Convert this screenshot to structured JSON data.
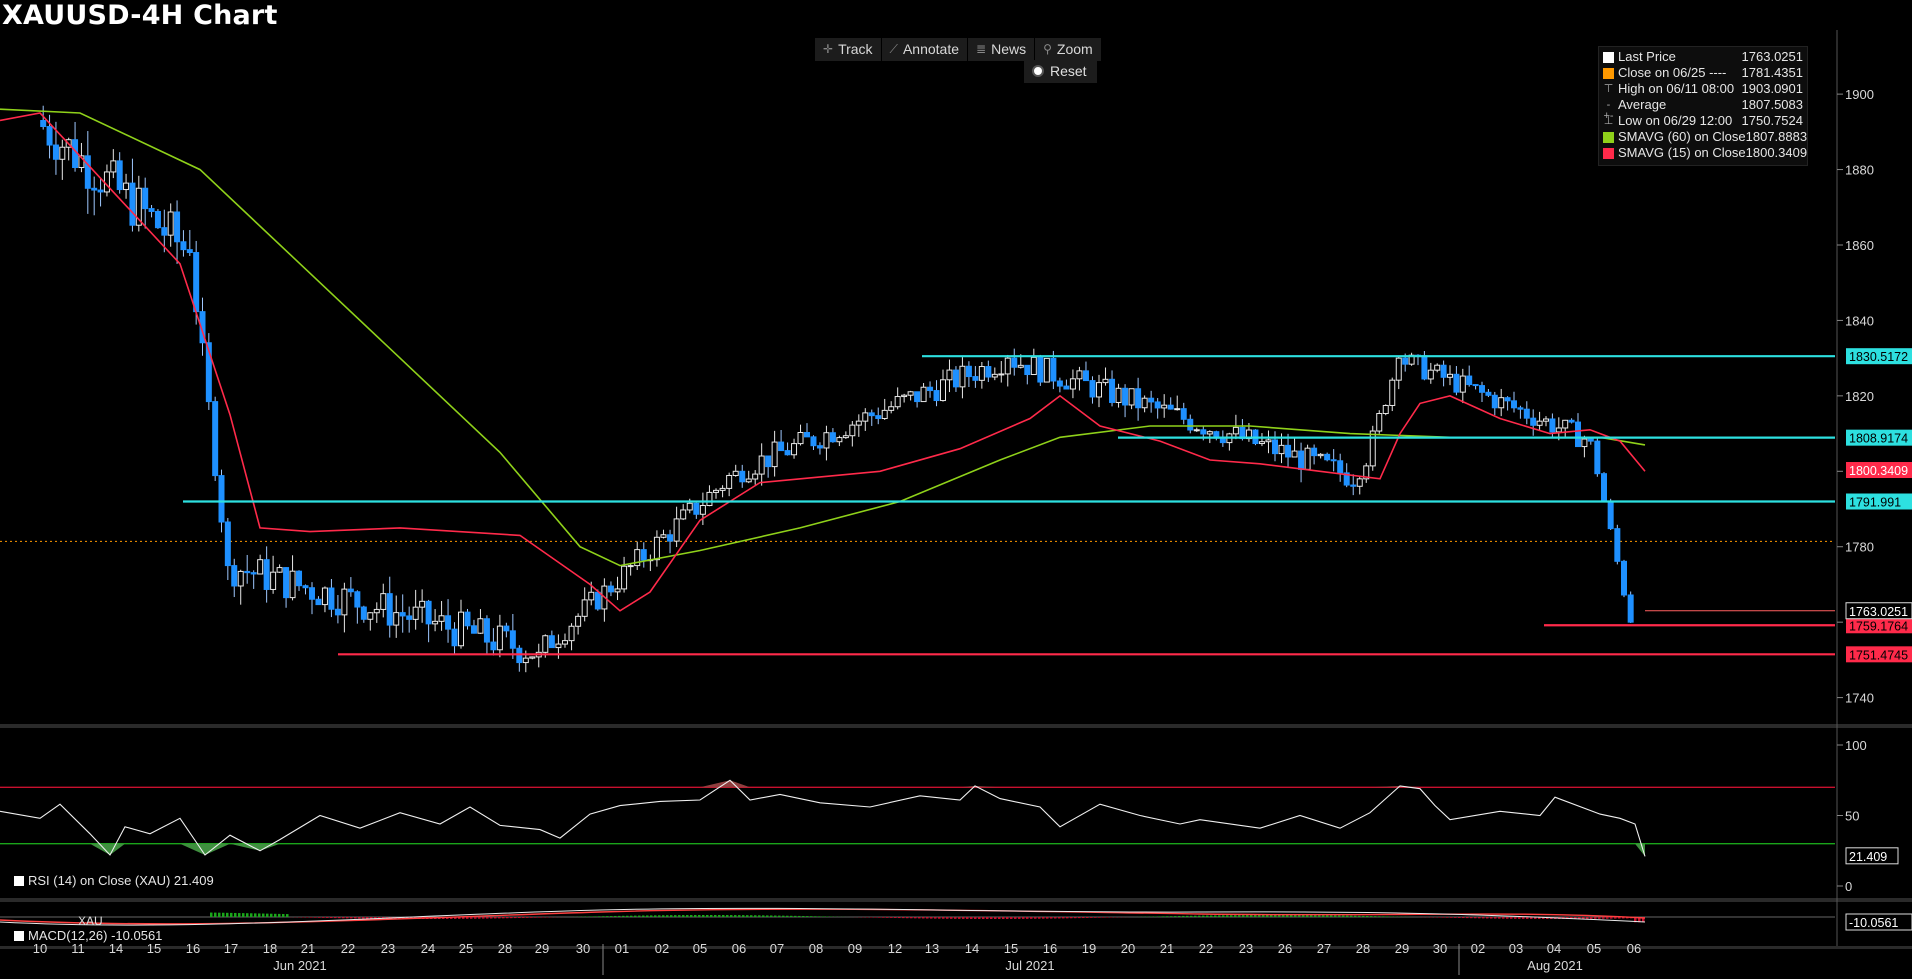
{
  "header": {
    "title": "XAUUSD-4H Chart"
  },
  "toolbar": {
    "items": [
      {
        "label": "Track",
        "icon": "crosshair-icon"
      },
      {
        "label": "Annotate",
        "icon": "pencil-icon"
      },
      {
        "label": "News",
        "icon": "news-icon"
      },
      {
        "label": "Zoom",
        "icon": "magnifier-icon"
      }
    ],
    "reset_label": "Reset"
  },
  "legend": {
    "rows": [
      {
        "label": "Last Price",
        "value": "1763.0251",
        "color": "#ffffff"
      },
      {
        "label": "Close on 06/25 ----",
        "value": "1781.4351",
        "color": "#ff9900"
      },
      {
        "label": "High on 06/11 08:00",
        "value": "1903.0901",
        "color": "#888888"
      },
      {
        "label": "Average",
        "value": "1807.5083",
        "color": "#888888"
      },
      {
        "label": "Low on 06/29 12:00",
        "value": "1750.7524",
        "color": "#888888"
      },
      {
        "label": "SMAVG (60)  on Close",
        "value": "1807.8883",
        "color": "#8fd11a"
      },
      {
        "label": "SMAVG (15)  on Close",
        "value": "1800.3409",
        "color": "#ff2a4a"
      }
    ]
  },
  "rsi_panel": {
    "label": "RSI (14)  on Close (XAU) 21.409"
  },
  "macd_panel": {
    "label": "MACD(12,26)  -10.0561",
    "top_label": "XAU"
  },
  "chart_data": {
    "type": "candlestick",
    "title": "XAUUSD-4H Chart",
    "price_axis": {
      "ticks": [
        1740,
        1760,
        1780,
        1800,
        1820,
        1840,
        1860,
        1880,
        1900
      ],
      "range": [
        1733,
        1917
      ]
    },
    "rsi_axis": {
      "ticks": [
        0,
        50,
        100
      ],
      "overbought": 70,
      "oversold": 30
    },
    "x_tick_labels": [
      "10",
      "11",
      "14",
      "15",
      "16",
      "17",
      "18",
      "21",
      "22",
      "23",
      "24",
      "25",
      "28",
      "29",
      "30",
      "01",
      "02",
      "05",
      "06",
      "07",
      "08",
      "09",
      "12",
      "13",
      "14",
      "15",
      "16",
      "19",
      "20",
      "21",
      "22",
      "23",
      "26",
      "27",
      "28",
      "29",
      "30",
      "02",
      "03",
      "04",
      "05",
      "06"
    ],
    "month_labels": [
      "Jun 2021",
      "Jul 2021",
      "Aug 2021"
    ],
    "candle_segments": [
      {
        "from": "06/10",
        "to": "06/16",
        "start": 1893,
        "end": 1858,
        "amp": 14
      },
      {
        "from": "06/16",
        "to": "06/17",
        "start": 1858,
        "end": 1775,
        "amp": 8
      },
      {
        "from": "06/17",
        "to": "06/29",
        "start": 1775,
        "end": 1752,
        "amp": 10
      },
      {
        "from": "06/29",
        "to": "07/06",
        "start": 1752,
        "end": 1800,
        "amp": 7
      },
      {
        "from": "07/06",
        "to": "07/15",
        "start": 1800,
        "end": 1830,
        "amp": 7
      },
      {
        "from": "07/15",
        "to": "07/28",
        "start": 1830,
        "end": 1798,
        "amp": 7
      },
      {
        "from": "07/28",
        "to": "07/29",
        "start": 1798,
        "end": 1830,
        "amp": 5
      },
      {
        "from": "07/29",
        "to": "08/05",
        "start": 1830,
        "end": 1808,
        "amp": 6
      },
      {
        "from": "08/05",
        "to": "08/06",
        "start": 1808,
        "end": 1760,
        "amp": 3
      }
    ],
    "sma15_points": [
      [
        0,
        1893
      ],
      [
        40,
        1895
      ],
      [
        110,
        1875
      ],
      [
        180,
        1855
      ],
      [
        230,
        1815
      ],
      [
        260,
        1785
      ],
      [
        310,
        1784
      ],
      [
        400,
        1785
      ],
      [
        520,
        1783
      ],
      [
        590,
        1770
      ],
      [
        620,
        1763
      ],
      [
        650,
        1768
      ],
      [
        700,
        1787
      ],
      [
        760,
        1797
      ],
      [
        880,
        1800
      ],
      [
        960,
        1806
      ],
      [
        1030,
        1814
      ],
      [
        1060,
        1820
      ],
      [
        1100,
        1812
      ],
      [
        1160,
        1808
      ],
      [
        1210,
        1803
      ],
      [
        1260,
        1802
      ],
      [
        1320,
        1800
      ],
      [
        1380,
        1798
      ],
      [
        1400,
        1810
      ],
      [
        1420,
        1818
      ],
      [
        1450,
        1820
      ],
      [
        1500,
        1814
      ],
      [
        1550,
        1810
      ],
      [
        1590,
        1811
      ],
      [
        1620,
        1808
      ],
      [
        1645,
        1800
      ]
    ],
    "sma60_points": [
      [
        0,
        1896
      ],
      [
        80,
        1895
      ],
      [
        200,
        1880
      ],
      [
        300,
        1855
      ],
      [
        400,
        1830
      ],
      [
        500,
        1805
      ],
      [
        580,
        1780
      ],
      [
        620,
        1775
      ],
      [
        700,
        1779
      ],
      [
        800,
        1785
      ],
      [
        900,
        1792
      ],
      [
        1000,
        1803
      ],
      [
        1060,
        1809
      ],
      [
        1150,
        1812
      ],
      [
        1250,
        1812
      ],
      [
        1350,
        1810
      ],
      [
        1450,
        1809
      ],
      [
        1550,
        1809
      ],
      [
        1600,
        1809
      ],
      [
        1645,
        1807
      ]
    ],
    "horizontal_lines": [
      {
        "label": "1830.5172",
        "value": 1830.5172,
        "color": "#2de0e0",
        "from": "07/13"
      },
      {
        "label": "1808.9174",
        "value": 1808.9174,
        "color": "#2de0e0",
        "from": "07/20"
      },
      {
        "label": "1791.991",
        "value": 1791.991,
        "color": "#2de0e0",
        "from": "06/16"
      },
      {
        "label": "1759.1764",
        "value": 1759.1764,
        "color": "#ff2a4a",
        "from": "08/04"
      },
      {
        "label": "1751.4745",
        "value": 1751.4745,
        "color": "#ff2a4a",
        "from": "06/22"
      }
    ],
    "close_ref": {
      "label": "1781.4351",
      "value": 1781.4351,
      "color": "#ff9900"
    },
    "last_price": {
      "label": "1763.0251",
      "value": 1763.0251
    },
    "sma15_last": {
      "label": "1800.3409",
      "value": 1800.3409,
      "color": "#ff2a4a"
    },
    "rsi": {
      "last": "21.409"
    },
    "macd": {
      "last": "-10.0561"
    }
  }
}
